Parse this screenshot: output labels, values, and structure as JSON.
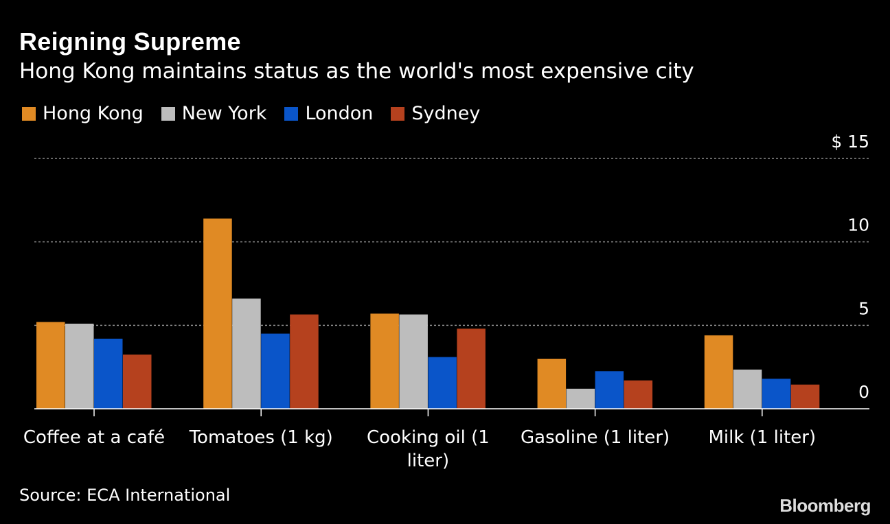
{
  "header": {
    "title": "Reigning Supreme",
    "subtitle": "Hong Kong maintains status as the world's most expensive city"
  },
  "footer": {
    "source": "Source: ECA International",
    "brand": "Bloomberg"
  },
  "chart_data": {
    "type": "bar",
    "title": "Reigning Supreme",
    "subtitle": "Hong Kong maintains status as the world's most expensive city",
    "xlabel": "",
    "ylabel": "",
    "ylim": [
      0,
      15
    ],
    "yticks": [
      0,
      5,
      10,
      15
    ],
    "ytick_labels": [
      "0",
      "5",
      "10",
      "$ 15"
    ],
    "grid": true,
    "legend_position": "top-left",
    "categories": [
      "Coffee at a café",
      "Tomatoes (1 kg)",
      "Cooking oil (1 liter)",
      "Gasoline (1 liter)",
      "Milk (1 liter)"
    ],
    "category_lines": [
      [
        "Coffee at a café"
      ],
      [
        "Tomatoes (1 kg)"
      ],
      [
        "Cooking oil (1",
        "liter)"
      ],
      [
        "Gasoline (1 liter)"
      ],
      [
        "Milk (1 liter)"
      ]
    ],
    "series": [
      {
        "name": "Hong Kong",
        "color": "#e08a24",
        "values": [
          5.2,
          11.4,
          5.7,
          3.0,
          4.4
        ]
      },
      {
        "name": "New York",
        "color": "#bdbdbd",
        "values": [
          5.1,
          6.6,
          5.65,
          1.2,
          2.35
        ]
      },
      {
        "name": "London",
        "color": "#0a55c9",
        "values": [
          4.2,
          4.5,
          3.1,
          2.25,
          1.8
        ]
      },
      {
        "name": "Sydney",
        "color": "#b5411e",
        "values": [
          3.25,
          5.65,
          4.8,
          1.7,
          1.45
        ]
      }
    ]
  }
}
